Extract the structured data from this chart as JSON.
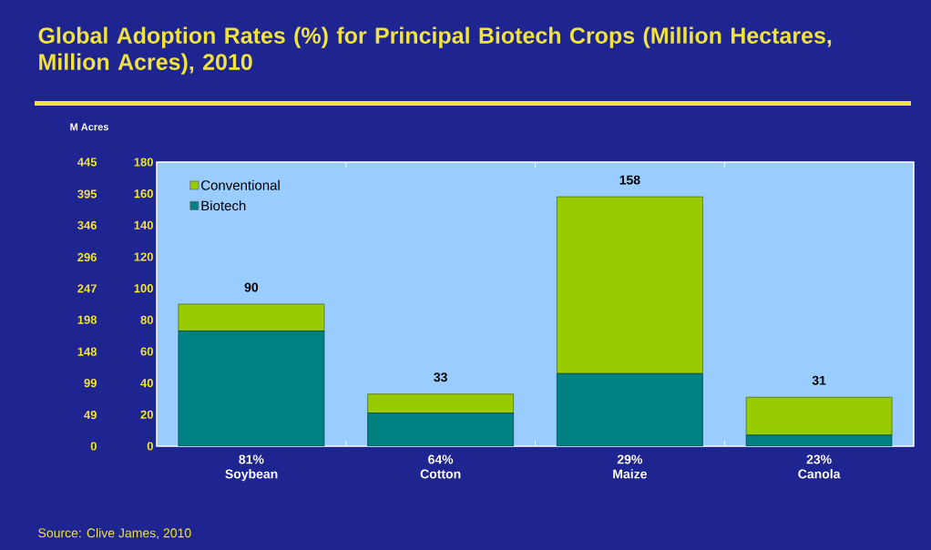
{
  "chart_data": {
    "type": "bar",
    "title": "Global Adoption Rates (%) for Principal Biotech Crops (Million Hectares, Million Acres), 2010",
    "categories": [
      "81% Soybean",
      "64% Cotton",
      "29% Maize",
      "23% Canola"
    ],
    "stacked": true,
    "series": [
      {
        "name": "Biotech",
        "color": "#008080",
        "values": [
          73,
          21,
          46,
          7
        ]
      },
      {
        "name": "Conventional",
        "color": "#99cc00",
        "values": [
          17,
          12,
          112,
          24
        ]
      }
    ],
    "totals": [
      "90",
      "33",
      "158",
      "31"
    ],
    "ylim": [
      0,
      180
    ],
    "yticks": [
      0,
      20,
      40,
      60,
      80,
      100,
      120,
      140,
      160,
      180
    ],
    "y2label": "M Acres",
    "y2lim": [
      0,
      445
    ],
    "y2ticks": [
      0,
      49,
      99,
      148,
      198,
      247,
      296,
      346,
      395,
      445
    ],
    "legend": "top left",
    "annotations": [
      "Source: Clive James, 2010"
    ]
  }
}
